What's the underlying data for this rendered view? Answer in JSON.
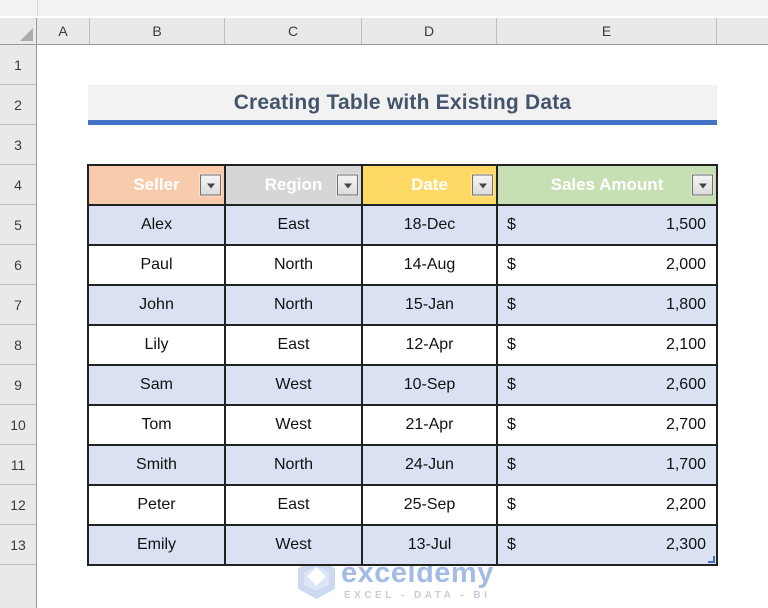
{
  "grid": {
    "column_labels": [
      "A",
      "B",
      "C",
      "D",
      "E",
      ""
    ],
    "row_labels": [
      "1",
      "2",
      "3",
      "4",
      "5",
      "6",
      "7",
      "8",
      "9",
      "10",
      "11",
      "12",
      "13"
    ]
  },
  "banner": {
    "title": "Creating Table with Existing Data",
    "text_color": "#44546A",
    "underline_color": "#4472C4",
    "background": "#F2F2F2"
  },
  "table": {
    "headers": [
      {
        "label": "Seller",
        "bg": "#F8CBAD"
      },
      {
        "label": "Region",
        "bg": "#D6D6D6"
      },
      {
        "label": "Date",
        "bg": "#FFD966"
      },
      {
        "label": "Sales Amount",
        "bg": "#C6E0B4"
      }
    ],
    "band_color": "#D9E1F2",
    "rows": [
      {
        "seller": "Alex",
        "region": "East",
        "date": "18-Dec",
        "currency": "$",
        "amount": "1,500"
      },
      {
        "seller": "Paul",
        "region": "North",
        "date": "14-Aug",
        "currency": "$",
        "amount": "2,000"
      },
      {
        "seller": "John",
        "region": "North",
        "date": "15-Jan",
        "currency": "$",
        "amount": "1,800"
      },
      {
        "seller": "Lily",
        "region": "East",
        "date": "12-Apr",
        "currency": "$",
        "amount": "2,100"
      },
      {
        "seller": "Sam",
        "region": "West",
        "date": "10-Sep",
        "currency": "$",
        "amount": "2,600"
      },
      {
        "seller": "Tom",
        "region": "West",
        "date": "21-Apr",
        "currency": "$",
        "amount": "2,700"
      },
      {
        "seller": "Smith",
        "region": "North",
        "date": "24-Jun",
        "currency": "$",
        "amount": "1,700"
      },
      {
        "seller": "Peter",
        "region": "East",
        "date": "25-Sep",
        "currency": "$",
        "amount": "2,200"
      },
      {
        "seller": "Emily",
        "region": "West",
        "date": "13-Jul",
        "currency": "$",
        "amount": "2,300"
      }
    ]
  },
  "icons": {
    "filter_dropdown": "▼ (CSS triangle)",
    "select_all_corner": "◢ (CSS triangle)"
  },
  "watermark": {
    "brand": "exceldemy",
    "tagline": "EXCEL - DATA - BI",
    "brand_color": "#A3BCE4"
  }
}
